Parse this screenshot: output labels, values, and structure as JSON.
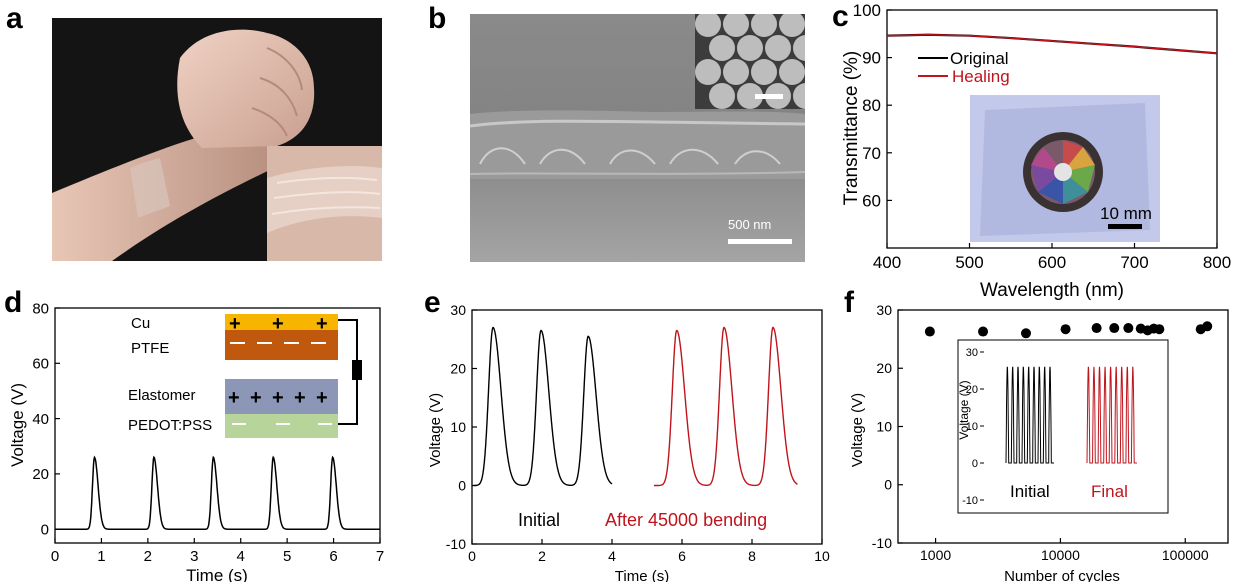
{
  "panels": {
    "a": {
      "label": "a"
    },
    "b": {
      "label": "b",
      "scale_bar": "500 nm"
    },
    "c": {
      "label": "c",
      "inset_scale_bar": "10 mm"
    },
    "d": {
      "label": "d",
      "inset": {
        "cu": "Cu",
        "ptfe": "PTFE",
        "elastomer": "Elastomer",
        "pedot": "PEDOT:PSS"
      }
    },
    "e": {
      "label": "e",
      "initial_label": "Initial",
      "after_label": "After 45000 bending"
    },
    "f": {
      "label": "f",
      "inset": {
        "ylabel": "Voltage (V)",
        "initial_label": "Initial",
        "final_label": "Final",
        "yticks": [
          "30",
          "20",
          "10",
          "0",
          "-10"
        ]
      }
    }
  },
  "colors": {
    "black": "#000000",
    "red": "#c0141c",
    "healing": "#c0141c"
  },
  "chart_data": [
    {
      "id": "c",
      "type": "line",
      "x": [
        400,
        450,
        500,
        550,
        600,
        650,
        700,
        750,
        800
      ],
      "series": [
        {
          "name": "Original",
          "color": "#000000",
          "values": [
            94.6,
            94.8,
            94.6,
            94.1,
            93.5,
            92.9,
            92.3,
            91.6,
            90.9
          ]
        },
        {
          "name": "Healing",
          "color": "#c0141c",
          "values": [
            94.6,
            94.8,
            94.6,
            94.1,
            93.5,
            92.9,
            92.3,
            91.6,
            90.9
          ]
        }
      ],
      "xlabel": "Wavelength (nm)",
      "ylabel": "Transmittance (%)",
      "xlim": [
        400,
        800
      ],
      "ylim": [
        50,
        100
      ],
      "xticks": [
        400,
        500,
        600,
        700,
        800
      ],
      "yticks": [
        60,
        70,
        80,
        90,
        100
      ],
      "legend": "top-left"
    },
    {
      "id": "d",
      "type": "line",
      "pulse_peaks_x": [
        0.85,
        2.13,
        3.41,
        4.7,
        5.98
      ],
      "peak_y": 26,
      "baseline_y": 0,
      "xlabel": "Time (s)",
      "ylabel": "Voltage (V)",
      "xlim": [
        0,
        7
      ],
      "ylim": [
        -5,
        80
      ],
      "xticks": [
        0,
        1,
        2,
        3,
        4,
        5,
        6,
        7
      ],
      "yticks": [
        0,
        20,
        40,
        60,
        80
      ]
    },
    {
      "id": "e",
      "type": "line",
      "series": [
        {
          "name": "Initial",
          "color": "#000000",
          "peaks_x": [
            0.6,
            1.97,
            3.32
          ],
          "peak_y": [
            27,
            26.5,
            25.5
          ],
          "range": [
            0.05,
            4.0
          ]
        },
        {
          "name": "After 45000 bending",
          "color": "#c0141c",
          "peaks_x": [
            5.85,
            7.2,
            8.6
          ],
          "peak_y": [
            26.5,
            27,
            27
          ],
          "range": [
            5.2,
            9.3
          ]
        }
      ],
      "xlabel": "Time (s)",
      "ylabel": "Voltage (V)",
      "xlim": [
        0,
        10
      ],
      "ylim": [
        -10,
        30
      ],
      "xticks": [
        0,
        2,
        4,
        6,
        8,
        10
      ],
      "yticks": [
        -10,
        0,
        10,
        20,
        30
      ]
    },
    {
      "id": "f",
      "type": "scatter",
      "x": [
        900,
        2400,
        5300,
        11000,
        19500,
        27000,
        35000,
        44000,
        50000,
        56000,
        62000,
        133000,
        150000
      ],
      "y": [
        26.3,
        26.3,
        26.0,
        26.7,
        26.9,
        26.9,
        26.9,
        26.8,
        26.5,
        26.8,
        26.7,
        26.7,
        27.2
      ],
      "xlabel": "Number of cycles",
      "ylabel": "Voltage (V)",
      "xscale": "log",
      "xlim": [
        500,
        220000
      ],
      "ylim": [
        -10,
        30
      ],
      "xticks": [
        1000,
        10000,
        100000
      ],
      "xticklabels": [
        "1000",
        "10000",
        "100000"
      ],
      "yticks": [
        -10,
        0,
        10,
        20,
        30
      ]
    }
  ]
}
